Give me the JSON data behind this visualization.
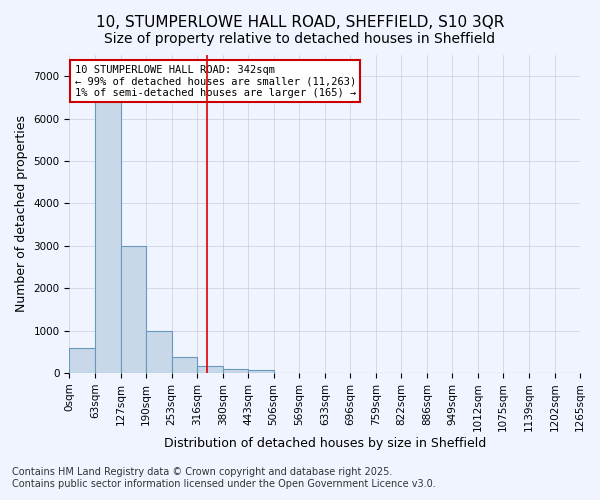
{
  "title1": "10, STUMPERLOWE HALL ROAD, SHEFFIELD, S10 3QR",
  "title2": "Size of property relative to detached houses in Sheffield",
  "xlabel": "Distribution of detached houses by size in Sheffield",
  "ylabel": "Number of detached properties",
  "bar_color": "#c8d8e8",
  "bar_edge_color": "#6699bb",
  "background_color": "#f0f4ff",
  "grid_color": "#ccccdd",
  "bin_edges": [
    0,
    63,
    127,
    190,
    253,
    316,
    380,
    443,
    506,
    569,
    633,
    696,
    759,
    822,
    886,
    949,
    1012,
    1075,
    1139,
    1202,
    1265
  ],
  "bin_edge_labels": [
    "0sqm",
    "63sqm",
    "127sqm",
    "190sqm",
    "253sqm",
    "316sqm",
    "380sqm",
    "443sqm",
    "506sqm",
    "569sqm",
    "633sqm",
    "696sqm",
    "759sqm",
    "822sqm",
    "886sqm",
    "949sqm",
    "1012sqm",
    "1075sqm",
    "1139sqm",
    "1202sqm",
    "1265sqm"
  ],
  "bar_values": [
    600,
    6500,
    3000,
    1000,
    380,
    175,
    100,
    70,
    10,
    5,
    2,
    1,
    0,
    0,
    0,
    0,
    0,
    0,
    0,
    0
  ],
  "property_size": 342,
  "red_line_color": "#dd0000",
  "legend_text_line1": "10 STUMPERLOWE HALL ROAD: 342sqm",
  "legend_text_line2": "← 99% of detached houses are smaller (11,263)",
  "legend_text_line3": "1% of semi-detached houses are larger (165) →",
  "legend_box_color": "#ffffff",
  "legend_edge_color": "#cc0000",
  "ylim": [
    0,
    7500
  ],
  "yticks": [
    0,
    1000,
    2000,
    3000,
    4000,
    5000,
    6000,
    7000
  ],
  "footer_line1": "Contains HM Land Registry data © Crown copyright and database right 2025.",
  "footer_line2": "Contains public sector information licensed under the Open Government Licence v3.0.",
  "title_fontsize": 11,
  "subtitle_fontsize": 10,
  "axis_label_fontsize": 9,
  "tick_fontsize": 7.5,
  "footer_fontsize": 7
}
